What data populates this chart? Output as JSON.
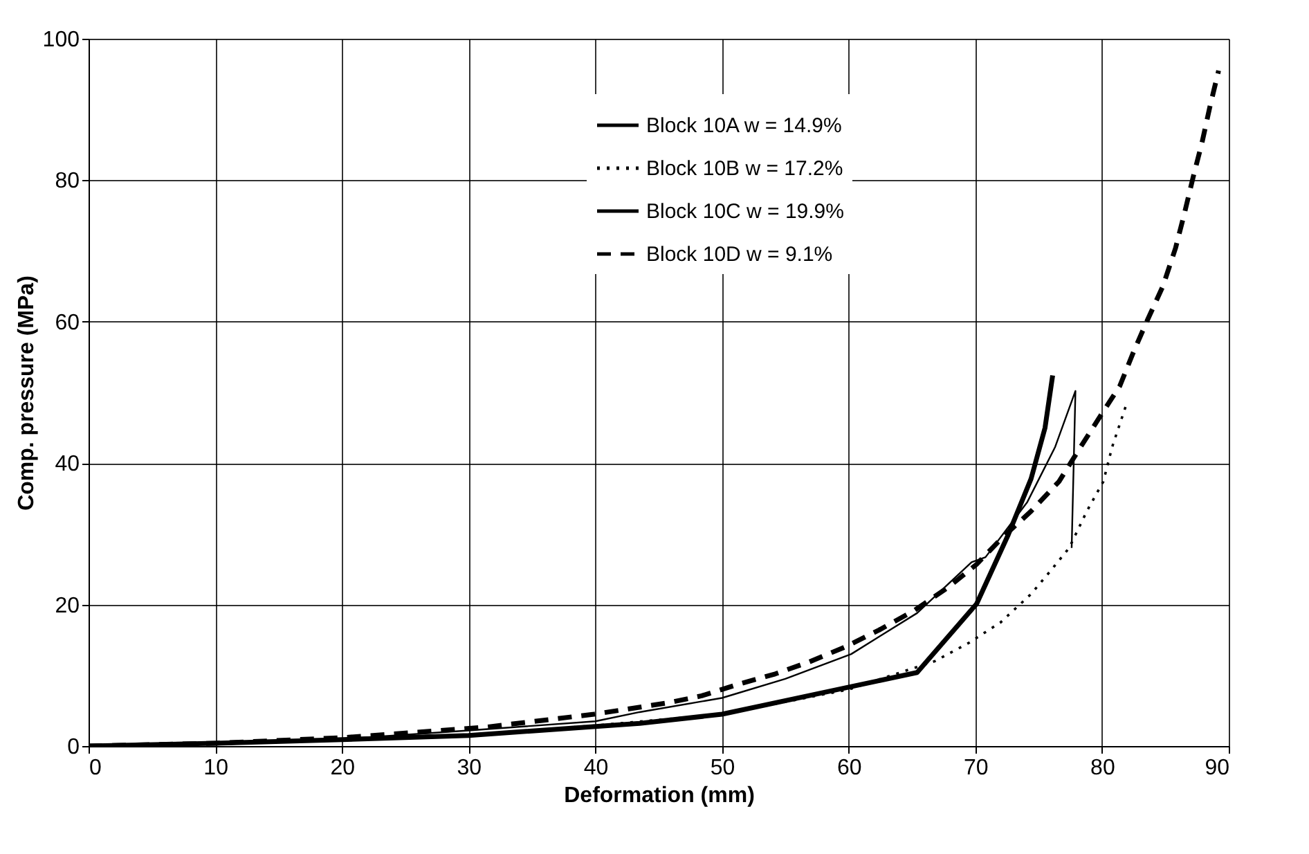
{
  "chart_data": {
    "type": "line",
    "xlabel": "Deformation (mm)",
    "ylabel": "Comp. pressure (MPa)",
    "xlim": [
      0,
      90
    ],
    "ylim": [
      0,
      100
    ],
    "xticks": [
      0,
      10,
      20,
      30,
      40,
      50,
      60,
      70,
      80,
      90
    ],
    "yticks": [
      0,
      20,
      40,
      60,
      80,
      100
    ],
    "grid": true,
    "legend": "top right",
    "marker": "none",
    "series": [
      {
        "name": "Block 10A w = 14.9%",
        "color": "#000000",
        "line_style": "solid",
        "x": [
          0,
          10,
          20,
          30,
          40,
          43.5,
          50,
          55,
          60.2,
          65.4,
          69.7,
          70.8,
          74.1,
          76.3,
          77.9,
          77.6
        ],
        "values": [
          0,
          0.4,
          1,
          2.2,
          3.5,
          4.8,
          6.8,
          9.5,
          13,
          18.8,
          26,
          26.7,
          34.5,
          42.3,
          50.2,
          28
        ]
      },
      {
        "name": "Block 10B w = 17.2%",
        "color": "#000000",
        "line_style": "dotted",
        "x": [
          0,
          10,
          20,
          30,
          40,
          50,
          60,
          66.8,
          69.5,
          72,
          74.4,
          75.9,
          77.4,
          78.8,
          80.1,
          80.8,
          81.9
        ],
        "values": [
          0,
          0.4,
          0.9,
          1.5,
          2.9,
          4.5,
          8,
          12,
          14.6,
          17.5,
          21.5,
          24.7,
          28,
          33.2,
          37.4,
          42.3,
          48.2
        ]
      },
      {
        "name": "Block 10C w = 19.9%",
        "color": "#000000",
        "line_style": "solid",
        "x": [
          0,
          10,
          20,
          30,
          43.5,
          50,
          60.2,
          65.4,
          70.1,
          72.6,
          74.4,
          75.5,
          76.1
        ],
        "values": [
          0,
          0.4,
          0.9,
          1.5,
          3.2,
          4.5,
          8.4,
          10.4,
          20.1,
          29.9,
          37.8,
          45,
          52.4
        ]
      },
      {
        "name": "Block 10D w = 9.1%",
        "color": "#000000",
        "line_style": "dashed",
        "x": [
          0,
          10,
          20.2,
          31.5,
          39.9,
          45.7,
          48.4,
          51.4,
          54.2,
          56.9,
          59.7,
          62.4,
          65.2,
          67.9,
          70.1,
          72.2,
          74.4,
          76.6,
          78.1,
          79.7,
          81.4,
          82.5,
          83.6,
          84.8,
          85.8,
          86.5,
          87.2,
          87.9,
          88.5,
          89.2
        ],
        "values": [
          0,
          0.4,
          1.2,
          2.7,
          4.5,
          6.1,
          7.1,
          8.8,
          10.2,
          11.9,
          14,
          16.4,
          19.2,
          22.5,
          25.7,
          29.6,
          33.2,
          37.4,
          41.7,
          46.2,
          50.9,
          55.8,
          60.3,
          65,
          70.4,
          75.3,
          80.5,
          85.4,
          90.3,
          95.5
        ]
      }
    ]
  }
}
